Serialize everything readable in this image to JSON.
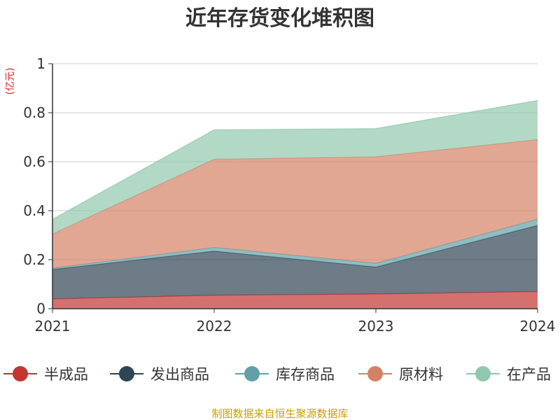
{
  "chart_data": {
    "type": "area",
    "stacked": true,
    "title": "近年存货变化堆积图",
    "unit_label": "(亿元)",
    "x": [
      "2021",
      "2022",
      "2023",
      "2024"
    ],
    "ylim": [
      0,
      1
    ],
    "yticks": [
      "0",
      "0.2",
      "0.4",
      "0.6",
      "0.8",
      "1"
    ],
    "yticks_values": [
      0,
      0.2,
      0.4,
      0.6,
      0.8,
      1
    ],
    "grid": true,
    "legend_position": "bottom",
    "series": [
      {
        "name": "半成品",
        "color": "#c23531",
        "values": [
          0.04,
          0.055,
          0.06,
          0.07
        ]
      },
      {
        "name": "发出商品",
        "color": "#2f4554",
        "values": [
          0.12,
          0.18,
          0.11,
          0.27
        ]
      },
      {
        "name": "库存商品",
        "color": "#61a0a8",
        "values": [
          0.005,
          0.015,
          0.015,
          0.025
        ]
      },
      {
        "name": "原材料",
        "color": "#d48265",
        "values": [
          0.14,
          0.36,
          0.435,
          0.325
        ]
      },
      {
        "name": "在产品",
        "color": "#91c7ae",
        "values": [
          0.06,
          0.12,
          0.115,
          0.16
        ]
      }
    ]
  },
  "source_text": "制图数据来自恒生聚源数据库"
}
